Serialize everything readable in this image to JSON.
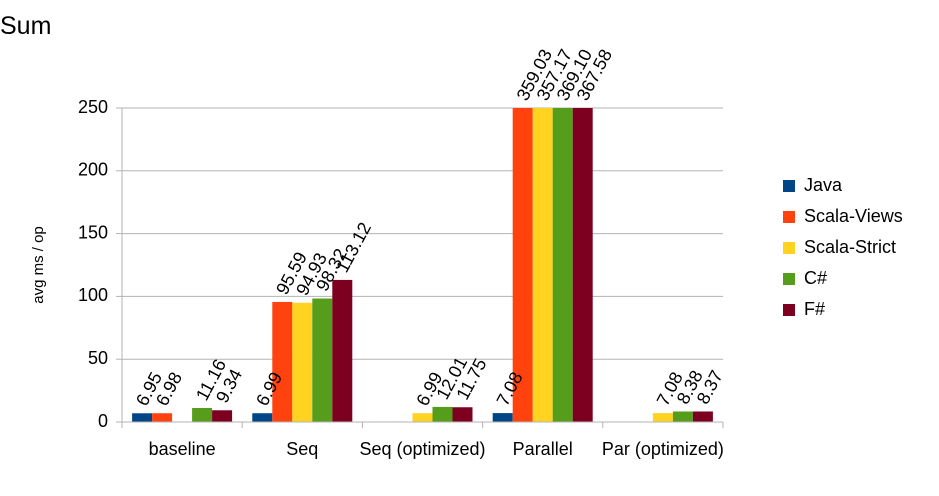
{
  "chart_data": {
    "type": "bar",
    "title": "Sum",
    "y_label": "avg ms / op",
    "categories": [
      "baseline",
      "Seq",
      "Seq (optimized)",
      "Parallel",
      "Par (optimized)"
    ],
    "series": [
      {
        "name": "Java",
        "color": "#004586",
        "values": [
          6.95,
          6.99,
          null,
          7.08,
          null
        ],
        "value_labels": [
          "6.95",
          "6.99",
          null,
          "7.08",
          null
        ]
      },
      {
        "name": "Scala-Views",
        "color": "#ff420e",
        "values": [
          6.98,
          95.59,
          null,
          359.03,
          null
        ],
        "value_labels": [
          "6.98",
          "95.59",
          null,
          "359.03",
          null
        ]
      },
      {
        "name": "Scala-Strict",
        "color": "#ffd320",
        "values": [
          null,
          94.93,
          6.99,
          357.17,
          7.08
        ],
        "value_labels": [
          null,
          "94.93",
          "6.99",
          "357.17",
          "7.08"
        ]
      },
      {
        "name": "C#",
        "color": "#579d1c",
        "values": [
          11.16,
          98.32,
          12.01,
          369.1,
          8.38
        ],
        "value_labels": [
          "11.16",
          "98.32",
          "12.01",
          "369.10",
          "8.38"
        ]
      },
      {
        "name": "F#",
        "color": "#7e0021",
        "values": [
          9.34,
          113.12,
          11.75,
          367.58,
          8.37
        ],
        "value_labels": [
          "9.34",
          "113.12",
          "11.75",
          "367.58",
          "8.37"
        ]
      }
    ],
    "ylim": [
      0,
      250
    ],
    "yticks": [
      0,
      50,
      100,
      150,
      200,
      250
    ],
    "grid": true,
    "legend": "right"
  }
}
